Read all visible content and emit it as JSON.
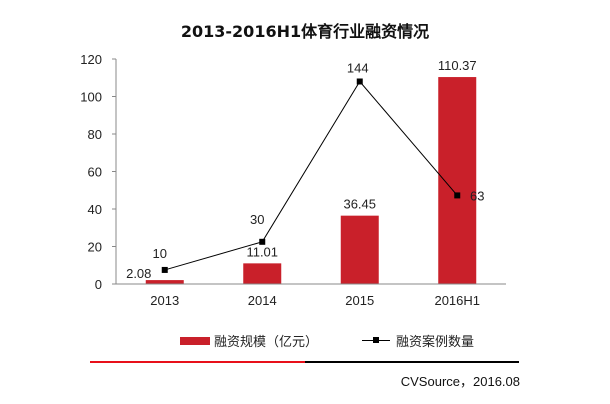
{
  "chart_data": {
    "type": "bar+line",
    "title": "2013-2016H1体育行业融资情况",
    "categories": [
      "2013",
      "2014",
      "2015",
      "2016H1"
    ],
    "series": [
      {
        "name": "融资规模（亿元）",
        "type": "bar",
        "axis": "primary",
        "values": [
          2.08,
          11.01,
          36.45,
          110.37
        ],
        "labels": [
          "2.08",
          "11.01",
          "36.45",
          "110.37"
        ],
        "color": "#c9202a"
      },
      {
        "name": "融资案例数量",
        "type": "line",
        "axis": "secondary",
        "values": [
          10,
          30,
          144,
          63
        ],
        "labels": [
          "10",
          "30",
          "144",
          "63"
        ],
        "color": "#000000"
      }
    ],
    "ylim": [
      0,
      120
    ],
    "yticks": [
      "0",
      "20",
      "40",
      "60",
      "80",
      "100",
      "120"
    ],
    "y2lim": [
      0,
      160
    ],
    "grid": false,
    "legend": "bottom"
  },
  "legend": {
    "bar_label": "融资规模（亿元）",
    "line_label": "融资案例数量"
  },
  "source": "CVSource，2016.08"
}
